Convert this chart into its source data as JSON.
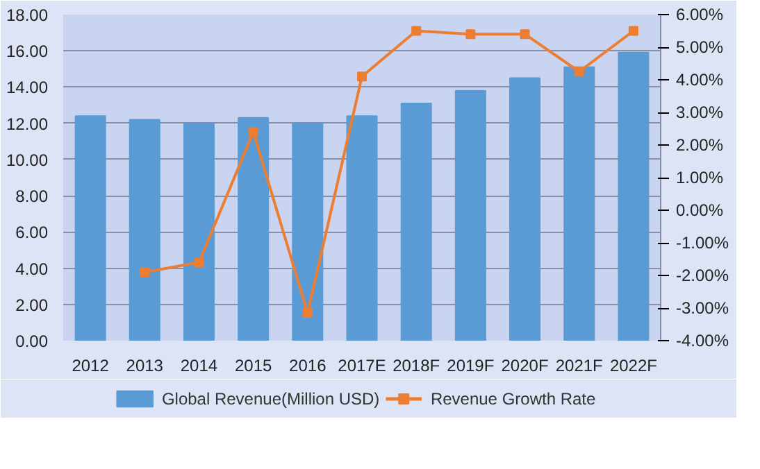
{
  "chart_data": {
    "type": "bar",
    "categories": [
      "2012",
      "2013",
      "2014",
      "2015",
      "2016",
      "2017E",
      "2018F",
      "2019F",
      "2020F",
      "2021F",
      "2022F"
    ],
    "series": [
      {
        "name": "Global Revenue(Million USD)",
        "color": "#5b9bd5",
        "values": [
          12.4,
          12.2,
          12.0,
          12.3,
          12.0,
          12.4,
          13.1,
          13.8,
          14.5,
          15.1,
          15.9
        ]
      },
      {
        "name": "Revenue Growth Rate",
        "type": "line",
        "axis": "y2",
        "color": "#ed7d31",
        "marker": "square",
        "values": [
          null,
          -1.9,
          -1.6,
          2.4,
          -3.15,
          4.1,
          5.5,
          5.4,
          5.4,
          4.25,
          5.5
        ]
      }
    ],
    "ylim": [
      0,
      18
    ],
    "yticks": [
      {
        "value": 0,
        "label": "0.00"
      },
      {
        "value": 2,
        "label": "2.00"
      },
      {
        "value": 4,
        "label": "4.00"
      },
      {
        "value": 6,
        "label": "6.00"
      },
      {
        "value": 8,
        "label": "8.00"
      },
      {
        "value": 10,
        "label": "10.00"
      },
      {
        "value": 12,
        "label": "12.00"
      },
      {
        "value": 14,
        "label": "14.00"
      },
      {
        "value": 16,
        "label": "16.00"
      },
      {
        "value": 18,
        "label": "18.00"
      }
    ],
    "y2lim": [
      -4,
      6
    ],
    "y2ticks": [
      {
        "value": -4,
        "label": "-4.00%"
      },
      {
        "value": -3,
        "label": "-3.00%"
      },
      {
        "value": -2,
        "label": "-2.00%"
      },
      {
        "value": -1,
        "label": "-1.00%"
      },
      {
        "value": 0,
        "label": "0.00%"
      },
      {
        "value": 1,
        "label": "1.00%"
      },
      {
        "value": 2,
        "label": "2.00%"
      },
      {
        "value": 3,
        "label": "3.00%"
      },
      {
        "value": 4,
        "label": "4.00%"
      },
      {
        "value": 5,
        "label": "5.00%"
      },
      {
        "value": 6,
        "label": "6.00%"
      }
    ],
    "grid": "y",
    "legend": "bottom"
  }
}
